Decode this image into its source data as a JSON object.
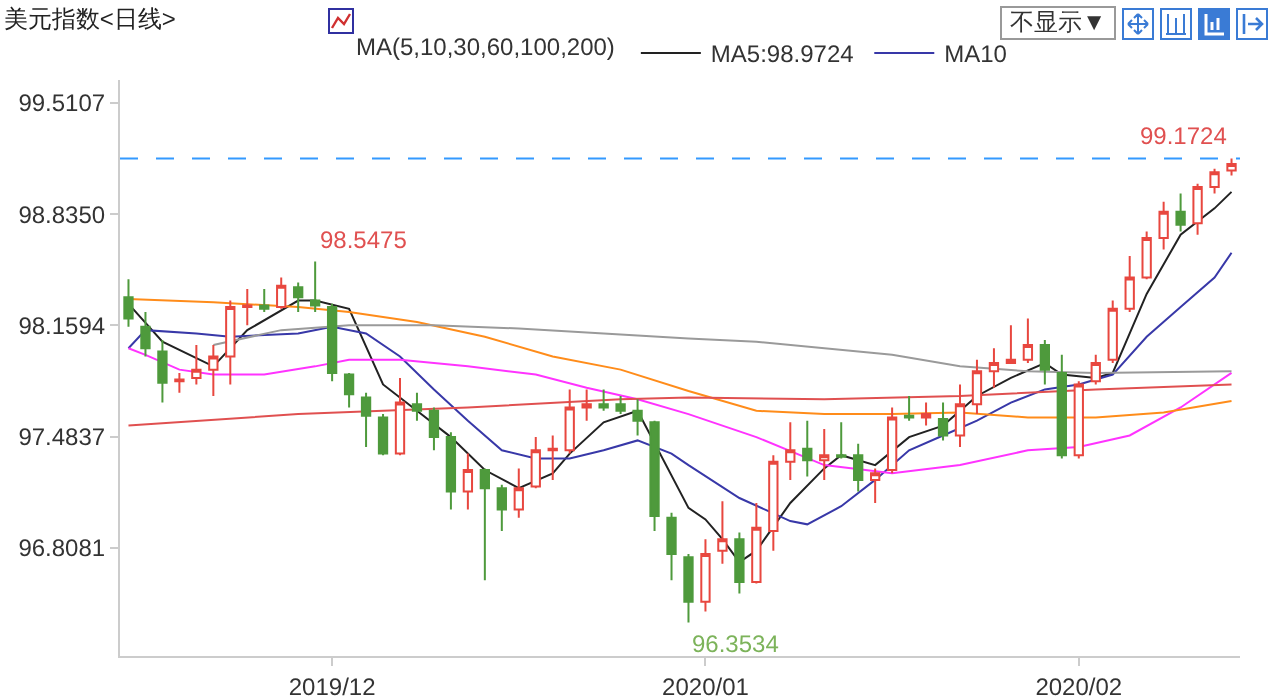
{
  "chart_data": {
    "type": "candlestick",
    "title": "美元指数<日线>",
    "legend_title": "MA(5,10,30,60,100,200)",
    "legend": "top",
    "marker": "none",
    "line_style": "solid",
    "grid": false,
    "categories": [
      null,
      null,
      null,
      null,
      null,
      null,
      null,
      null,
      null,
      null,
      null,
      null,
      "2019/12",
      null,
      null,
      null,
      null,
      null,
      null,
      null,
      null,
      null,
      null,
      null,
      null,
      null,
      null,
      null,
      null,
      null,
      null,
      null,
      null,
      null,
      "2020/01",
      null,
      null,
      null,
      null,
      null,
      null,
      null,
      null,
      null,
      null,
      null,
      null,
      null,
      null,
      null,
      null,
      null,
      null,
      null,
      null,
      null,
      "2020/02",
      null,
      null,
      null,
      null,
      null,
      null,
      null,
      null,
      null
    ],
    "ohlc": [
      [
        98.33,
        98.44,
        98.15,
        98.2
      ],
      [
        98.15,
        98.24,
        97.97,
        98.02
      ],
      [
        98.0,
        98.07,
        97.69,
        97.81
      ],
      [
        97.82,
        97.87,
        97.75,
        97.83
      ],
      [
        97.84,
        98.04,
        97.8,
        97.89
      ],
      [
        97.89,
        98.04,
        97.73,
        97.97
      ],
      [
        97.97,
        98.31,
        97.8,
        98.27
      ],
      [
        98.27,
        98.38,
        98.16,
        98.28
      ],
      [
        98.28,
        98.38,
        98.24,
        98.26
      ],
      [
        98.27,
        98.45,
        98.26,
        98.4
      ],
      [
        98.39,
        98.42,
        98.24,
        98.33
      ],
      [
        98.31,
        98.5475,
        98.24,
        98.28
      ],
      [
        98.27,
        98.29,
        97.82,
        97.87
      ],
      [
        97.86,
        97.87,
        97.66,
        97.74
      ],
      [
        97.72,
        97.75,
        97.42,
        97.61
      ],
      [
        97.6,
        97.62,
        97.37,
        97.38
      ],
      [
        97.38,
        97.84,
        97.37,
        97.69
      ],
      [
        97.68,
        97.75,
        97.58,
        97.64
      ],
      [
        97.64,
        97.66,
        97.4,
        97.48
      ],
      [
        97.48,
        97.51,
        97.04,
        97.15
      ],
      [
        97.15,
        97.38,
        97.04,
        97.28
      ],
      [
        97.28,
        97.29,
        96.61,
        97.17
      ],
      [
        97.17,
        97.19,
        96.91,
        97.04
      ],
      [
        97.04,
        97.29,
        96.99,
        97.17
      ],
      [
        97.18,
        97.48,
        97.17,
        97.4
      ],
      [
        97.4,
        97.49,
        97.22,
        97.41
      ],
      [
        97.4,
        97.77,
        97.38,
        97.66
      ],
      [
        97.66,
        97.77,
        97.58,
        97.68
      ],
      [
        97.68,
        97.77,
        97.64,
        97.66
      ],
      [
        97.68,
        97.73,
        97.62,
        97.64
      ],
      [
        97.64,
        97.71,
        97.49,
        97.58
      ],
      [
        97.57,
        97.58,
        96.91,
        97.0
      ],
      [
        96.99,
        97.02,
        96.61,
        96.77
      ],
      [
        96.75,
        96.77,
        96.3534,
        96.48
      ],
      [
        96.48,
        96.86,
        96.42,
        96.77
      ],
      [
        96.79,
        97.09,
        96.71,
        96.86
      ],
      [
        96.86,
        96.9,
        96.53,
        96.6
      ],
      [
        96.6,
        97.08,
        96.59,
        96.93
      ],
      [
        96.91,
        97.37,
        96.79,
        97.33
      ],
      [
        97.33,
        97.57,
        97.22,
        97.4
      ],
      [
        97.41,
        97.58,
        97.24,
        97.34
      ],
      [
        97.34,
        97.53,
        97.22,
        97.37
      ],
      [
        97.37,
        97.57,
        97.35,
        97.36
      ],
      [
        97.37,
        97.44,
        97.15,
        97.22
      ],
      [
        97.22,
        97.29,
        97.08,
        97.26
      ],
      [
        97.28,
        97.66,
        97.26,
        97.6
      ],
      [
        97.61,
        97.73,
        97.58,
        97.6
      ],
      [
        97.6,
        97.69,
        97.55,
        97.62
      ],
      [
        97.59,
        97.69,
        97.46,
        97.49
      ],
      [
        97.49,
        97.8,
        97.42,
        97.68
      ],
      [
        97.68,
        97.95,
        97.62,
        97.88
      ],
      [
        97.88,
        98.02,
        97.78,
        97.93
      ],
      [
        97.93,
        98.16,
        97.93,
        97.95
      ],
      [
        97.95,
        98.2,
        97.93,
        98.04
      ],
      [
        98.04,
        98.07,
        97.8,
        97.89
      ],
      [
        97.87,
        97.98,
        97.35,
        97.37
      ],
      [
        97.37,
        97.82,
        97.35,
        97.8
      ],
      [
        97.82,
        97.98,
        97.8,
        97.93
      ],
      [
        97.95,
        98.31,
        97.93,
        98.26
      ],
      [
        98.26,
        98.58,
        98.24,
        98.45
      ],
      [
        98.45,
        98.73,
        98.44,
        98.69
      ],
      [
        98.69,
        98.91,
        98.62,
        98.85
      ],
      [
        98.85,
        98.96,
        98.73,
        98.77
      ],
      [
        98.78,
        99.02,
        98.71,
        99.0
      ],
      [
        99.0,
        99.11,
        98.96,
        99.09
      ],
      [
        99.1,
        99.1724,
        99.07,
        99.14
      ]
    ],
    "series": [
      {
        "type": "line",
        "name": "MA5:98.9724",
        "color": "#222222",
        "values": [
          98.29,
          null,
          98.06,
          null,
          null,
          97.91,
          null,
          98.13,
          null,
          null,
          98.31,
          98.31,
          null,
          98.26,
          null,
          97.8,
          null,
          97.64,
          null,
          97.48,
          null,
          97.28,
          null,
          97.17,
          null,
          97.26,
          97.38,
          null,
          97.57,
          null,
          97.64,
          null,
          null,
          97.05,
          96.98,
          96.86,
          96.72,
          96.79,
          null,
          97.08,
          null,
          97.29,
          97.37,
          null,
          97.31,
          null,
          97.48,
          null,
          97.55,
          null,
          97.73,
          null,
          97.84,
          null,
          97.93,
          97.86,
          null,
          97.84,
          97.87,
          null,
          98.35,
          null,
          98.71,
          null,
          98.87,
          98.97
        ]
      },
      {
        "type": "line",
        "name": "MA10",
        "color": "#3838a8",
        "values": [
          98.02,
          98.13,
          null,
          null,
          98.11,
          null,
          98.09,
          null,
          null,
          null,
          98.11,
          null,
          98.15,
          null,
          98.11,
          null,
          97.97,
          null,
          97.77,
          null,
          97.58,
          null,
          97.4,
          null,
          97.35,
          null,
          97.35,
          null,
          97.4,
          null,
          97.46,
          null,
          97.38,
          97.31,
          null,
          null,
          97.11,
          null,
          null,
          96.97,
          96.95,
          null,
          97.06,
          null,
          97.22,
          null,
          97.4,
          null,
          97.49,
          null,
          97.58,
          null,
          97.69,
          null,
          97.77,
          null,
          97.8,
          null,
          97.86,
          null,
          98.09,
          null,
          98.27,
          null,
          98.45,
          98.6
        ]
      },
      {
        "type": "line",
        "color": "#ff33ff",
        "values": [
          98.02,
          97.98,
          null,
          97.89,
          null,
          97.86,
          null,
          null,
          97.86,
          null,
          null,
          97.91,
          null,
          97.95,
          null,
          null,
          97.95,
          null,
          null,
          null,
          97.91,
          null,
          null,
          null,
          97.86,
          null,
          null,
          97.78,
          null,
          null,
          97.71,
          null,
          null,
          97.62,
          null,
          null,
          null,
          97.48,
          null,
          null,
          null,
          97.31,
          null,
          null,
          null,
          97.26,
          null,
          null,
          null,
          97.31,
          null,
          null,
          null,
          97.4,
          null,
          null,
          97.42,
          null,
          null,
          97.49,
          null,
          null,
          97.66,
          null,
          null,
          97.87
        ]
      },
      {
        "type": "line",
        "color": "#ff8c1a",
        "values": [
          98.32,
          null,
          null,
          null,
          null,
          98.3,
          null,
          null,
          null,
          null,
          98.27,
          null,
          null,
          98.24,
          null,
          null,
          null,
          98.18,
          null,
          null,
          null,
          98.09,
          null,
          null,
          null,
          97.97,
          null,
          null,
          null,
          97.89,
          null,
          null,
          null,
          97.76,
          null,
          null,
          null,
          97.64,
          null,
          null,
          null,
          97.62,
          null,
          null,
          null,
          97.62,
          null,
          null,
          null,
          97.63,
          null,
          null,
          null,
          97.6,
          null,
          null,
          null,
          97.6,
          null,
          null,
          null,
          97.63,
          null,
          null,
          null,
          97.7
        ]
      },
      {
        "type": "line",
        "color": "#9a9a9a",
        "values": [
          null,
          null,
          null,
          null,
          null,
          98.04,
          null,
          null,
          null,
          98.13,
          null,
          null,
          null,
          98.16,
          null,
          null,
          null,
          null,
          98.16,
          null,
          null,
          null,
          null,
          98.14,
          null,
          null,
          null,
          null,
          98.11,
          null,
          null,
          null,
          null,
          98.08,
          null,
          null,
          null,
          98.06,
          null,
          null,
          null,
          null,
          null,
          null,
          null,
          97.98,
          null,
          null,
          null,
          97.91,
          null,
          null,
          null,
          97.88,
          null,
          null,
          null,
          97.87,
          null,
          null,
          null,
          null,
          null,
          null,
          null,
          97.88
        ]
      },
      {
        "type": "line",
        "color": "#e05050",
        "values": [
          97.55,
          null,
          null,
          null,
          null,
          null,
          null,
          null,
          null,
          null,
          97.62,
          null,
          null,
          null,
          null,
          null,
          null,
          null,
          null,
          null,
          97.66,
          null,
          null,
          null,
          null,
          null,
          null,
          null,
          null,
          97.71,
          null,
          null,
          null,
          97.72,
          null,
          null,
          null,
          null,
          null,
          null,
          null,
          97.71,
          null,
          null,
          null,
          null,
          null,
          null,
          null,
          97.73,
          null,
          null,
          null,
          null,
          null,
          null,
          null,
          97.77,
          null,
          null,
          null,
          null,
          null,
          null,
          null,
          97.8
        ]
      }
    ],
    "ylim": [
      96.15,
      99.65
    ],
    "yticks": [
      {
        "value": 99.5107,
        "label": "99.5107"
      },
      {
        "value": 98.835,
        "label": "98.8350"
      },
      {
        "value": 98.1594,
        "label": "98.1594"
      },
      {
        "value": 97.4837,
        "label": "97.4837"
      },
      {
        "value": 96.8081,
        "label": "96.8081"
      }
    ],
    "ref_lines": [
      {
        "axis": "y",
        "value": 99.1724,
        "color": "#3399ff",
        "line_style": "dashed"
      }
    ],
    "annotations": [
      "不显示▼",
      "98.5475",
      "96.3534",
      {
        "text": "99.1724",
        "y": 99.1724
      }
    ]
  }
}
